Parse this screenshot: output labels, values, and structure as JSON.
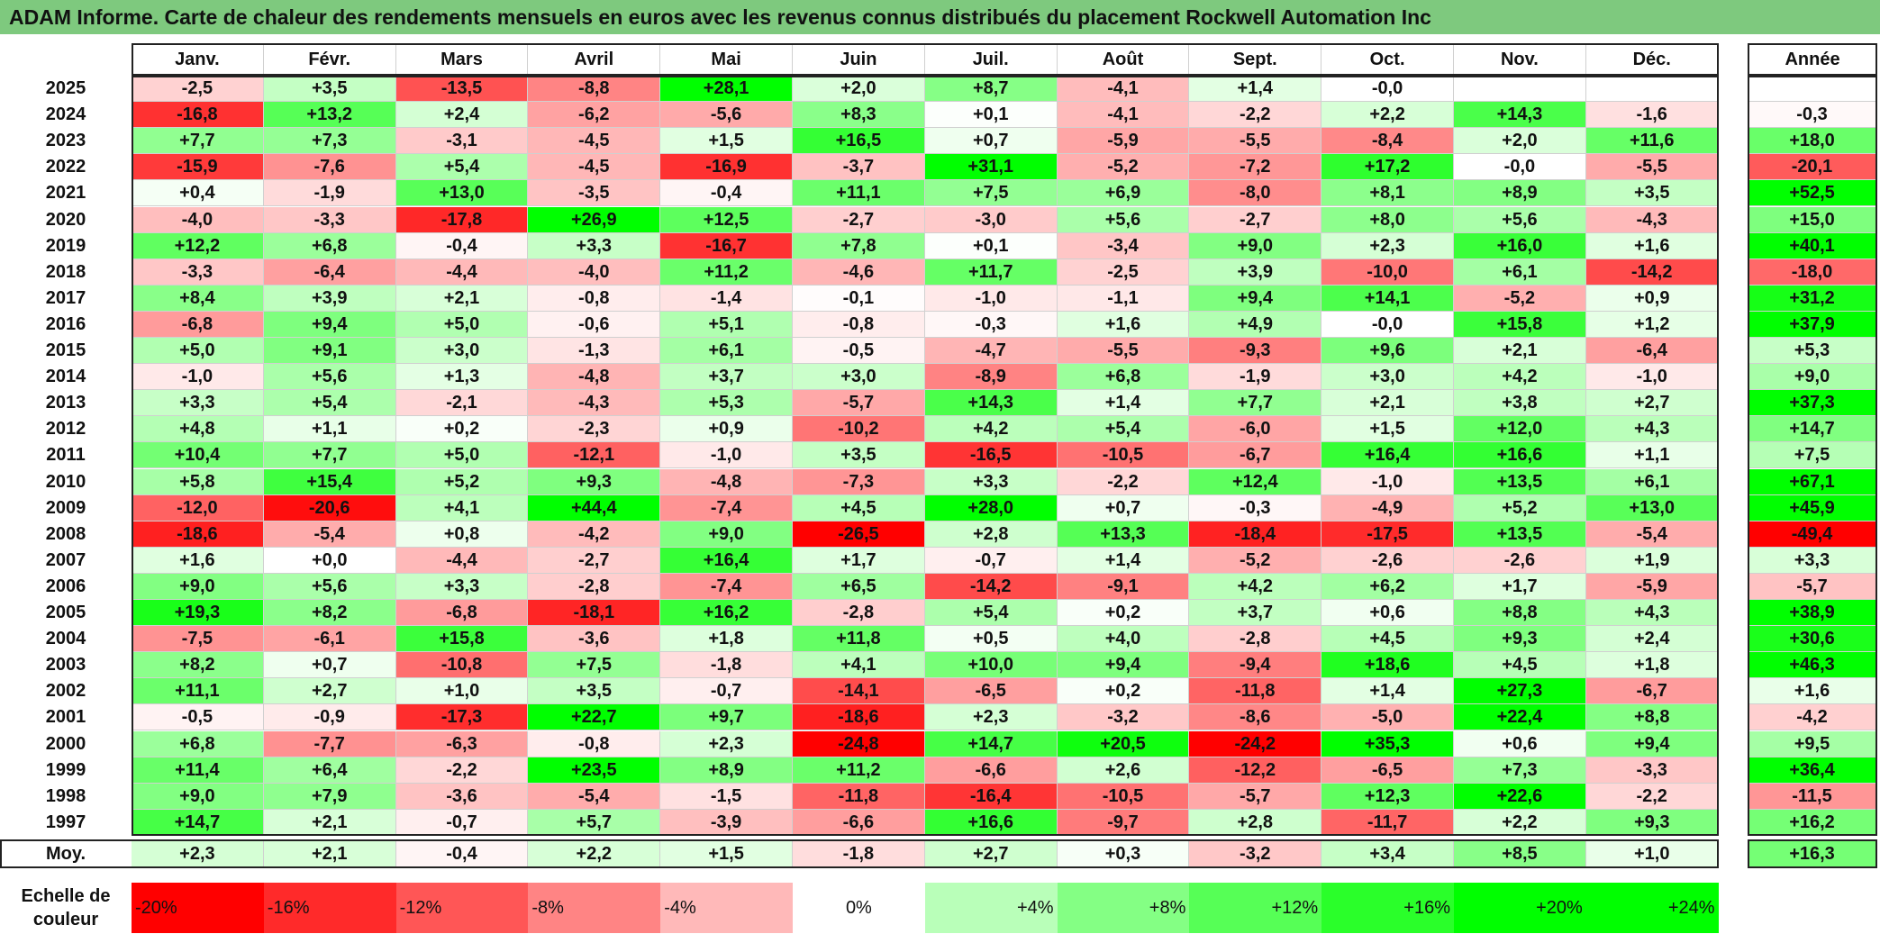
{
  "title": "ADAM Informe. Carte de chaleur des rendements mensuels en euros avec les revenus connus distribués du placement Rockwell Automation Inc",
  "chart_data": {
    "type": "heatmap",
    "months": [
      "Janv.",
      "Févr.",
      "Mars",
      "Avril",
      "Mai",
      "Juin",
      "Juil.",
      "Août",
      "Sept.",
      "Oct.",
      "Nov.",
      "Déc."
    ],
    "year_header": "Année",
    "rows": [
      {
        "year": "2025",
        "values": [
          "-2,5",
          "+3,5",
          "-13,5",
          "-8,8",
          "+28,1",
          "+2,0",
          "+8,7",
          "-4,1",
          "+1,4",
          "-0,0",
          "",
          ""
        ],
        "annual": ""
      },
      {
        "year": "2024",
        "values": [
          "-16,8",
          "+13,2",
          "+2,4",
          "-6,2",
          "-5,6",
          "+8,3",
          "+0,1",
          "-4,1",
          "-2,2",
          "+2,2",
          "+14,3",
          "-1,6"
        ],
        "annual": "-0,3"
      },
      {
        "year": "2023",
        "values": [
          "+7,7",
          "+7,3",
          "-3,1",
          "-4,5",
          "+1,5",
          "+16,5",
          "+0,7",
          "-5,9",
          "-5,5",
          "-8,4",
          "+2,0",
          "+11,6"
        ],
        "annual": "+18,0"
      },
      {
        "year": "2022",
        "values": [
          "-15,9",
          "-7,6",
          "+5,4",
          "-4,5",
          "-16,9",
          "-3,7",
          "+31,1",
          "-5,2",
          "-7,2",
          "+17,2",
          "-0,0",
          "-5,5"
        ],
        "annual": "-20,1"
      },
      {
        "year": "2021",
        "values": [
          "+0,4",
          "-1,9",
          "+13,0",
          "-3,5",
          "-0,4",
          "+11,1",
          "+7,5",
          "+6,9",
          "-8,0",
          "+8,1",
          "+8,9",
          "+3,5"
        ],
        "annual": "+52,5"
      },
      {
        "year": "2020",
        "values": [
          "-4,0",
          "-3,3",
          "-17,8",
          "+26,9",
          "+12,5",
          "-2,7",
          "-3,0",
          "+5,6",
          "-2,7",
          "+8,0",
          "+5,6",
          "-4,3"
        ],
        "annual": "+15,0"
      },
      {
        "year": "2019",
        "values": [
          "+12,2",
          "+6,8",
          "-0,4",
          "+3,3",
          "-16,7",
          "+7,8",
          "+0,1",
          "-3,4",
          "+9,0",
          "+2,3",
          "+16,0",
          "+1,6"
        ],
        "annual": "+40,1"
      },
      {
        "year": "2018",
        "values": [
          "-3,3",
          "-6,4",
          "-4,4",
          "-4,0",
          "+11,2",
          "-4,6",
          "+11,7",
          "-2,5",
          "+3,9",
          "-10,0",
          "+6,1",
          "-14,2"
        ],
        "annual": "-18,0"
      },
      {
        "year": "2017",
        "values": [
          "+8,4",
          "+3,9",
          "+2,1",
          "-0,8",
          "-1,4",
          "-0,1",
          "-1,0",
          "-1,1",
          "+9,4",
          "+14,1",
          "-5,2",
          "+0,9"
        ],
        "annual": "+31,2"
      },
      {
        "year": "2016",
        "values": [
          "-6,8",
          "+9,4",
          "+5,0",
          "-0,6",
          "+5,1",
          "-0,8",
          "-0,3",
          "+1,6",
          "+4,9",
          "-0,0",
          "+15,8",
          "+1,2"
        ],
        "annual": "+37,9"
      },
      {
        "year": "2015",
        "values": [
          "+5,0",
          "+9,1",
          "+3,0",
          "-1,3",
          "+6,1",
          "-0,5",
          "-4,7",
          "-5,5",
          "-9,3",
          "+9,6",
          "+2,1",
          "-6,4"
        ],
        "annual": "+5,3"
      },
      {
        "year": "2014",
        "values": [
          "-1,0",
          "+5,6",
          "+1,3",
          "-4,8",
          "+3,7",
          "+3,0",
          "-8,9",
          "+6,8",
          "-1,9",
          "+3,0",
          "+4,2",
          "-1,0"
        ],
        "annual": "+9,0"
      },
      {
        "year": "2013",
        "values": [
          "+3,3",
          "+5,4",
          "-2,1",
          "-4,3",
          "+5,3",
          "-5,7",
          "+14,3",
          "+1,4",
          "+7,7",
          "+2,1",
          "+3,8",
          "+2,7"
        ],
        "annual": "+37,3"
      },
      {
        "year": "2012",
        "values": [
          "+4,8",
          "+1,1",
          "+0,2",
          "-2,3",
          "+0,9",
          "-10,2",
          "+4,2",
          "+5,4",
          "-6,0",
          "+1,5",
          "+12,0",
          "+4,3"
        ],
        "annual": "+14,7"
      },
      {
        "year": "2011",
        "values": [
          "+10,4",
          "+7,7",
          "+5,0",
          "-12,1",
          "-1,0",
          "+3,5",
          "-16,5",
          "-10,5",
          "-6,7",
          "+16,4",
          "+16,6",
          "+1,1"
        ],
        "annual": "+7,5"
      },
      {
        "year": "2010",
        "values": [
          "+5,8",
          "+15,4",
          "+5,2",
          "+9,3",
          "-4,8",
          "-7,3",
          "+3,3",
          "-2,2",
          "+12,4",
          "-1,0",
          "+13,5",
          "+6,1"
        ],
        "annual": "+67,1"
      },
      {
        "year": "2009",
        "values": [
          "-12,0",
          "-20,6",
          "+4,1",
          "+44,4",
          "-7,4",
          "+4,5",
          "+28,0",
          "+0,7",
          "-0,3",
          "-4,9",
          "+5,2",
          "+13,0"
        ],
        "annual": "+45,9"
      },
      {
        "year": "2008",
        "values": [
          "-18,6",
          "-5,4",
          "+0,8",
          "-4,2",
          "+9,0",
          "-26,5",
          "+2,8",
          "+13,3",
          "-18,4",
          "-17,5",
          "+13,5",
          "-5,4"
        ],
        "annual": "-49,4"
      },
      {
        "year": "2007",
        "values": [
          "+1,6",
          "+0,0",
          "-4,4",
          "-2,7",
          "+16,4",
          "+1,7",
          "-0,7",
          "+1,4",
          "-5,2",
          "-2,6",
          "-2,6",
          "+1,9"
        ],
        "annual": "+3,3"
      },
      {
        "year": "2006",
        "values": [
          "+9,0",
          "+5,6",
          "+3,3",
          "-2,8",
          "-7,4",
          "+6,5",
          "-14,2",
          "-9,1",
          "+4,2",
          "+6,2",
          "+1,7",
          "-5,9"
        ],
        "annual": "-5,7"
      },
      {
        "year": "2005",
        "values": [
          "+19,3",
          "+8,2",
          "-6,8",
          "-18,1",
          "+16,2",
          "-2,8",
          "+5,4",
          "+0,2",
          "+3,7",
          "+0,6",
          "+8,8",
          "+4,3"
        ],
        "annual": "+38,9"
      },
      {
        "year": "2004",
        "values": [
          "-7,5",
          "-6,1",
          "+15,8",
          "-3,6",
          "+1,8",
          "+11,8",
          "+0,5",
          "+4,0",
          "-2,8",
          "+4,5",
          "+9,3",
          "+2,4"
        ],
        "annual": "+30,6"
      },
      {
        "year": "2003",
        "values": [
          "+8,2",
          "+0,7",
          "-10,8",
          "+7,5",
          "-1,8",
          "+4,1",
          "+10,0",
          "+9,4",
          "-9,4",
          "+18,6",
          "+4,5",
          "+1,8"
        ],
        "annual": "+46,3"
      },
      {
        "year": "2002",
        "values": [
          "+11,1",
          "+2,7",
          "+1,0",
          "+3,5",
          "-0,7",
          "-14,1",
          "-6,5",
          "+0,2",
          "-11,8",
          "+1,4",
          "+27,3",
          "-6,7"
        ],
        "annual": "+1,6"
      },
      {
        "year": "2001",
        "values": [
          "-0,5",
          "-0,9",
          "-17,3",
          "+22,7",
          "+9,7",
          "-18,6",
          "+2,3",
          "-3,2",
          "-8,6",
          "-5,0",
          "+22,4",
          "+8,8"
        ],
        "annual": "-4,2"
      },
      {
        "year": "2000",
        "values": [
          "+6,8",
          "-7,7",
          "-6,3",
          "-0,8",
          "+2,3",
          "-24,8",
          "+14,7",
          "+20,5",
          "-24,2",
          "+35,3",
          "+0,6",
          "+9,4"
        ],
        "annual": "+9,5"
      },
      {
        "year": "1999",
        "values": [
          "+11,4",
          "+6,4",
          "-2,2",
          "+23,5",
          "+8,9",
          "+11,2",
          "-6,6",
          "+2,6",
          "-12,2",
          "-6,5",
          "+7,3",
          "-3,3"
        ],
        "annual": "+36,4"
      },
      {
        "year": "1998",
        "values": [
          "+9,0",
          "+7,9",
          "-3,6",
          "-5,4",
          "-1,5",
          "-11,8",
          "-16,4",
          "-10,5",
          "-5,7",
          "+12,3",
          "+22,6",
          "-2,2"
        ],
        "annual": "-11,5"
      },
      {
        "year": "1997",
        "values": [
          "+14,7",
          "+2,1",
          "-0,7",
          "+5,7",
          "-3,9",
          "-6,6",
          "+16,6",
          "-9,7",
          "+2,8",
          "-11,7",
          "+2,2",
          "+9,3"
        ],
        "annual": "+16,2"
      }
    ],
    "average": {
      "label": "Moy.",
      "values": [
        "+2,3",
        "+2,1",
        "-0,4",
        "+2,2",
        "+1,5",
        "-1,8",
        "+2,7",
        "+0,3",
        "-3,2",
        "+3,4",
        "+8,5",
        "+1,0"
      ],
      "annual": "+16,3"
    },
    "color_scale": {
      "label_line1": "Echelle de",
      "label_line2": "couleur",
      "stops": [
        "-20%",
        "-16%",
        "-12%",
        "-8%",
        "-4%",
        "0%",
        "+4%",
        "+8%",
        "+12%",
        "+16%",
        "+20%",
        "+24%"
      ],
      "stop_values": [
        -20,
        -16,
        -12,
        -8,
        -4,
        0,
        4,
        8,
        12,
        16,
        20,
        24
      ]
    },
    "colors": {
      "negative_max": "#ff0000",
      "neutral": "#ffffff",
      "positive_max": "#00ff00"
    }
  }
}
